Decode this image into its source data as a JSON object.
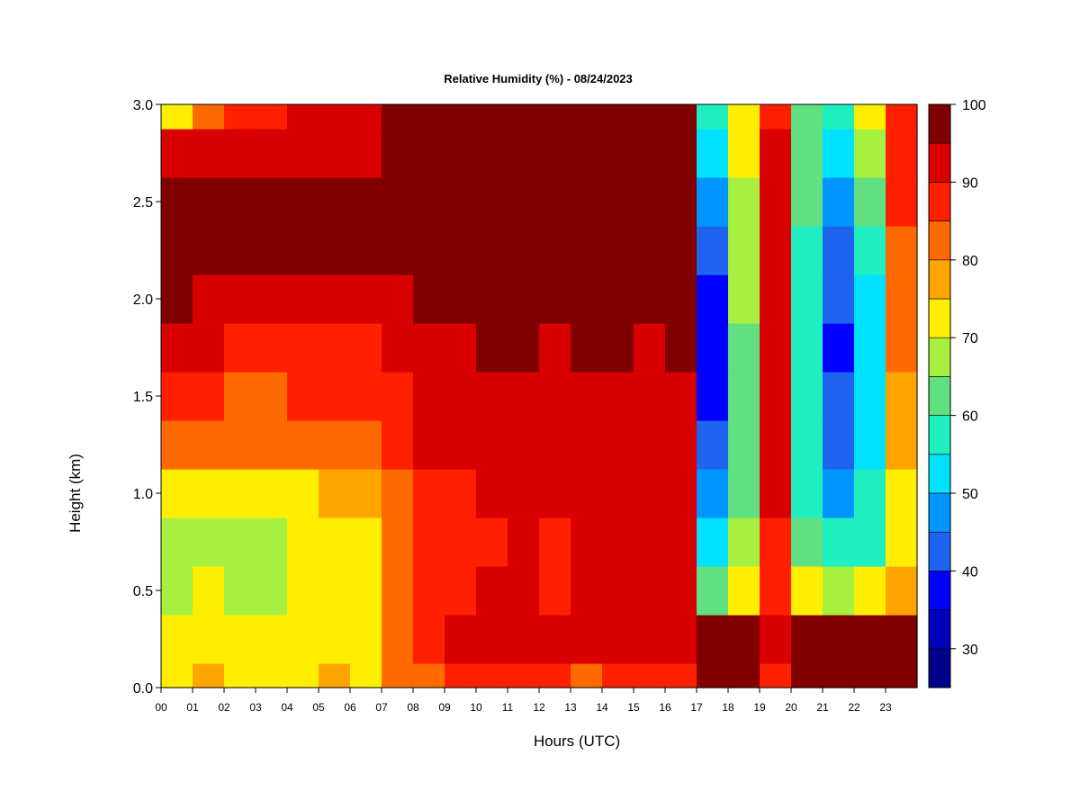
{
  "chart_data": {
    "type": "heatmap",
    "title": "Relative Humidity (%) - 08/24/2023",
    "xlabel": "Hours (UTC)",
    "ylabel": "Height (km)",
    "xlim": [
      0,
      24
    ],
    "ylim": [
      0.0,
      3.0
    ],
    "x_ticks": [
      "00",
      "01",
      "02",
      "03",
      "04",
      "05",
      "06",
      "07",
      "08",
      "09",
      "10",
      "11",
      "12",
      "13",
      "14",
      "15",
      "16",
      "17",
      "18",
      "19",
      "20",
      "21",
      "22",
      "23"
    ],
    "y_ticks": [
      "0.0",
      "0.5",
      "1.0",
      "1.5",
      "2.0",
      "2.5",
      "3.0"
    ],
    "colorbar": {
      "min": 25,
      "max": 100,
      "step": 5,
      "tick_labels": [
        "30",
        "40",
        "50",
        "60",
        "70",
        "80",
        "90",
        "100"
      ],
      "colors": [
        "#00008b",
        "#0000bb",
        "#0000ff",
        "#1e64f0",
        "#0096ff",
        "#00e0ff",
        "#20f0c0",
        "#60e080",
        "#a8f040",
        "#ffee00",
        "#ffa500",
        "#ff6a00",
        "#ff2000",
        "#d80000",
        "#800000"
      ]
    },
    "hours": [
      0,
      1,
      2,
      3,
      4,
      5,
      6,
      7,
      8,
      9,
      10,
      11,
      12,
      13,
      14,
      15,
      16,
      17,
      18,
      19,
      20,
      21,
      22,
      23
    ],
    "heights_km": [
      0.0,
      0.25,
      0.5,
      0.75,
      1.0,
      1.25,
      1.5,
      1.75,
      2.0,
      2.25,
      2.5,
      2.75,
      3.0
    ],
    "rh_values": [
      [
        72,
        75,
        74,
        73,
        74,
        75,
        74,
        80,
        84,
        85,
        86,
        86,
        85,
        84,
        86,
        85,
        86,
        95,
        98,
        85,
        98,
        98,
        98,
        98
      ],
      [
        72,
        73,
        72,
        71,
        72,
        74,
        74,
        84,
        88,
        90,
        92,
        92,
        90,
        91,
        92,
        90,
        92,
        96,
        97,
        90,
        98,
        98,
        98,
        97
      ],
      [
        68,
        70,
        69,
        69,
        70,
        72,
        73,
        84,
        88,
        89,
        90,
        90,
        88,
        90,
        92,
        90,
        92,
        62,
        70,
        86,
        74,
        65,
        74,
        78
      ],
      [
        68,
        69,
        68,
        68,
        70,
        72,
        73,
        82,
        86,
        88,
        89,
        90,
        88,
        90,
        92,
        90,
        92,
        50,
        65,
        88,
        62,
        55,
        58,
        74
      ],
      [
        72,
        74,
        73,
        73,
        74,
        75,
        76,
        83,
        87,
        89,
        92,
        92,
        90,
        92,
        93,
        92,
        93,
        45,
        62,
        90,
        58,
        48,
        55,
        74
      ],
      [
        82,
        82,
        80,
        80,
        81,
        82,
        82,
        86,
        90,
        91,
        93,
        93,
        91,
        93,
        94,
        93,
        94,
        40,
        60,
        90,
        56,
        44,
        52,
        76
      ],
      [
        86,
        86,
        84,
        84,
        85,
        86,
        86,
        88,
        91,
        92,
        94,
        94,
        92,
        94,
        94,
        94,
        94,
        38,
        60,
        90,
        55,
        40,
        50,
        78
      ],
      [
        92,
        90,
        88,
        88,
        88,
        89,
        89,
        90,
        92,
        93,
        95,
        95,
        93,
        95,
        95,
        94,
        95,
        36,
        62,
        92,
        55,
        38,
        50,
        80
      ],
      [
        97,
        94,
        92,
        92,
        92,
        92,
        92,
        93,
        95,
        96,
        97,
        97,
        96,
        97,
        97,
        96,
        97,
        36,
        65,
        92,
        56,
        40,
        52,
        82
      ],
      [
        98,
        97,
        96,
        96,
        96,
        96,
        96,
        96,
        97,
        98,
        98,
        98,
        98,
        98,
        98,
        98,
        98,
        40,
        66,
        93,
        58,
        44,
        56,
        84
      ],
      [
        96,
        96,
        95,
        95,
        95,
        96,
        96,
        97,
        98,
        98,
        98,
        98,
        98,
        98,
        98,
        98,
        98,
        45,
        68,
        92,
        60,
        48,
        62,
        86
      ],
      [
        90,
        92,
        92,
        92,
        93,
        93,
        94,
        96,
        97,
        98,
        98,
        98,
        98,
        98,
        98,
        98,
        98,
        50,
        70,
        90,
        62,
        52,
        66,
        88
      ],
      [
        72,
        84,
        88,
        88,
        90,
        91,
        92,
        95,
        97,
        98,
        98,
        98,
        98,
        98,
        98,
        98,
        98,
        55,
        72,
        88,
        64,
        56,
        70,
        88
      ]
    ]
  }
}
